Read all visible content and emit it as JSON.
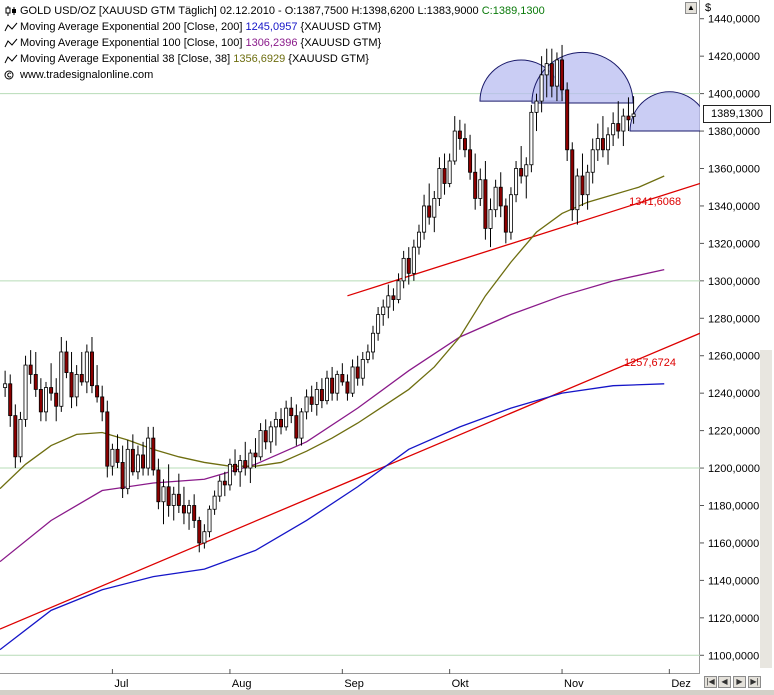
{
  "header": {
    "instrument": "GOLD USD/OZ [XAUUSD GTM",
    "interval": "Täglich]",
    "date": "02.12.2010",
    "ohlc": {
      "open": "O:1387,7500",
      "high": "H:1398,6200",
      "low": "L:1383,9000",
      "close": "C:1389,1300"
    }
  },
  "indicators": [
    {
      "label": "Moving Average Exponential 200 [Close, 200]",
      "value": "1245,0957",
      "suffix": "{XAUUSD GTM}",
      "color": "#1515c8"
    },
    {
      "label": "Moving Average Exponential 100 [Close, 100]",
      "value": "1306,2396",
      "suffix": "{XAUUSD GTM}",
      "color": "#8a1a8a"
    },
    {
      "label": "Moving Average Exponential 38 [Close, 38]",
      "value": "1356,6929",
      "suffix": "{XAUUSD GTM}",
      "color": "#6e6e10"
    }
  ],
  "watermark": "www.tradesignalonline.com",
  "currency_symbol": "$",
  "last_price": "1389,1300",
  "trendline_labels": [
    "1341,6068",
    "1257,6724"
  ],
  "colors": {
    "candle_up": "#ffffff",
    "candle_down": "#8b0000",
    "trendline": "#dd0000",
    "ema200": "#1515c8",
    "ema100": "#8a1a8a",
    "ema38": "#6e6e10",
    "highlight": "#b8bcf0",
    "grid": "#b7dcb7"
  },
  "chart_data": {
    "type": "candlestick",
    "title": "GOLD USD/OZ",
    "ylim": [
      1090,
      1450
    ],
    "y_ticks": [
      "1100,0000",
      "1120,0000",
      "1140,0000",
      "1160,0000",
      "1180,0000",
      "1200,0000",
      "1220,0000",
      "1240,0000",
      "1260,0000",
      "1280,0000",
      "1300,0000",
      "1320,0000",
      "1340,0000",
      "1360,0000",
      "1380,0000",
      "1400,0000",
      "1420,0000",
      "1440,0000"
    ],
    "x_ticks": [
      "Jul",
      "Aug",
      "Sep",
      "Okt",
      "Nov",
      "Dez"
    ],
    "x_tick_positions": [
      22,
      45,
      67,
      88,
      110,
      131
    ],
    "x_range": [
      0,
      137
    ],
    "grid_levels": [
      1100,
      1200,
      1300,
      1400
    ],
    "candles": [
      [
        1243,
        1252,
        1238,
        1245
      ],
      [
        1245,
        1250,
        1222,
        1228
      ],
      [
        1228,
        1234,
        1200,
        1206
      ],
      [
        1206,
        1230,
        1203,
        1226
      ],
      [
        1226,
        1260,
        1222,
        1255
      ],
      [
        1255,
        1263,
        1245,
        1250
      ],
      [
        1250,
        1262,
        1238,
        1242
      ],
      [
        1242,
        1248,
        1225,
        1230
      ],
      [
        1230,
        1246,
        1225,
        1243
      ],
      [
        1243,
        1256,
        1236,
        1240
      ],
      [
        1240,
        1248,
        1225,
        1233
      ],
      [
        1233,
        1270,
        1230,
        1262
      ],
      [
        1262,
        1268,
        1248,
        1251
      ],
      [
        1251,
        1262,
        1232,
        1238
      ],
      [
        1238,
        1255,
        1233,
        1250
      ],
      [
        1250,
        1262,
        1244,
        1246
      ],
      [
        1246,
        1266,
        1240,
        1262
      ],
      [
        1262,
        1270,
        1240,
        1244
      ],
      [
        1244,
        1255,
        1235,
        1238
      ],
      [
        1238,
        1244,
        1225,
        1230
      ],
      [
        1230,
        1236,
        1195,
        1201
      ],
      [
        1201,
        1213,
        1196,
        1210
      ],
      [
        1210,
        1218,
        1200,
        1203
      ],
      [
        1203,
        1212,
        1184,
        1189
      ],
      [
        1189,
        1215,
        1186,
        1210
      ],
      [
        1210,
        1218,
        1196,
        1198
      ],
      [
        1198,
        1212,
        1194,
        1207
      ],
      [
        1207,
        1214,
        1196,
        1200
      ],
      [
        1200,
        1222,
        1196,
        1216
      ],
      [
        1216,
        1222,
        1196,
        1199
      ],
      [
        1199,
        1205,
        1178,
        1182
      ],
      [
        1182,
        1194,
        1170,
        1190
      ],
      [
        1190,
        1202,
        1174,
        1180
      ],
      [
        1180,
        1190,
        1172,
        1186
      ],
      [
        1186,
        1197,
        1176,
        1180
      ],
      [
        1180,
        1190,
        1170,
        1176
      ],
      [
        1176,
        1183,
        1167,
        1180
      ],
      [
        1180,
        1186,
        1168,
        1172
      ],
      [
        1172,
        1174,
        1155,
        1160
      ],
      [
        1160,
        1170,
        1157,
        1166
      ],
      [
        1166,
        1180,
        1163,
        1178
      ],
      [
        1178,
        1188,
        1175,
        1185
      ],
      [
        1185,
        1196,
        1182,
        1193
      ],
      [
        1193,
        1198,
        1185,
        1191
      ],
      [
        1191,
        1205,
        1188,
        1202
      ],
      [
        1202,
        1210,
        1196,
        1198
      ],
      [
        1198,
        1207,
        1190,
        1204
      ],
      [
        1204,
        1214,
        1196,
        1200
      ],
      [
        1200,
        1210,
        1192,
        1208
      ],
      [
        1208,
        1216,
        1200,
        1206
      ],
      [
        1206,
        1224,
        1204,
        1220
      ],
      [
        1220,
        1226,
        1210,
        1214
      ],
      [
        1214,
        1225,
        1208,
        1222
      ],
      [
        1222,
        1230,
        1212,
        1226
      ],
      [
        1226,
        1232,
        1218,
        1222
      ],
      [
        1222,
        1236,
        1220,
        1232
      ],
      [
        1232,
        1238,
        1224,
        1228
      ],
      [
        1228,
        1234,
        1212,
        1216
      ],
      [
        1216,
        1232,
        1212,
        1230
      ],
      [
        1230,
        1242,
        1226,
        1238
      ],
      [
        1238,
        1244,
        1230,
        1234
      ],
      [
        1234,
        1246,
        1228,
        1242
      ],
      [
        1242,
        1248,
        1232,
        1236
      ],
      [
        1236,
        1252,
        1234,
        1248
      ],
      [
        1248,
        1254,
        1236,
        1240
      ],
      [
        1240,
        1252,
        1236,
        1250
      ],
      [
        1250,
        1256,
        1244,
        1246
      ],
      [
        1246,
        1250,
        1236,
        1240
      ],
      [
        1240,
        1258,
        1238,
        1254
      ],
      [
        1254,
        1260,
        1244,
        1248
      ],
      [
        1248,
        1262,
        1244,
        1258
      ],
      [
        1258,
        1266,
        1256,
        1262
      ],
      [
        1262,
        1276,
        1258,
        1272
      ],
      [
        1272,
        1286,
        1268,
        1282
      ],
      [
        1282,
        1290,
        1276,
        1286
      ],
      [
        1286,
        1298,
        1280,
        1292
      ],
      [
        1292,
        1296,
        1284,
        1290
      ],
      [
        1290,
        1304,
        1288,
        1300
      ],
      [
        1300,
        1316,
        1296,
        1312
      ],
      [
        1312,
        1318,
        1298,
        1304
      ],
      [
        1304,
        1322,
        1300,
        1318
      ],
      [
        1318,
        1330,
        1314,
        1326
      ],
      [
        1326,
        1346,
        1322,
        1340
      ],
      [
        1340,
        1352,
        1330,
        1334
      ],
      [
        1334,
        1348,
        1326,
        1344
      ],
      [
        1344,
        1366,
        1340,
        1360
      ],
      [
        1360,
        1368,
        1346,
        1352
      ],
      [
        1352,
        1368,
        1350,
        1364
      ],
      [
        1364,
        1388,
        1362,
        1380
      ],
      [
        1380,
        1386,
        1370,
        1376
      ],
      [
        1376,
        1384,
        1366,
        1370
      ],
      [
        1370,
        1378,
        1354,
        1358
      ],
      [
        1358,
        1368,
        1338,
        1344
      ],
      [
        1344,
        1360,
        1340,
        1354
      ],
      [
        1354,
        1364,
        1322,
        1328
      ],
      [
        1328,
        1344,
        1318,
        1338
      ],
      [
        1338,
        1354,
        1334,
        1350
      ],
      [
        1350,
        1358,
        1334,
        1340
      ],
      [
        1340,
        1344,
        1320,
        1326
      ],
      [
        1326,
        1350,
        1322,
        1346
      ],
      [
        1346,
        1364,
        1342,
        1360
      ],
      [
        1360,
        1372,
        1352,
        1356
      ],
      [
        1356,
        1366,
        1344,
        1362
      ],
      [
        1362,
        1394,
        1358,
        1390
      ],
      [
        1390,
        1400,
        1380,
        1396
      ],
      [
        1396,
        1420,
        1390,
        1410
      ],
      [
        1410,
        1424,
        1398,
        1416
      ],
      [
        1416,
        1424,
        1398,
        1404
      ],
      [
        1404,
        1422,
        1396,
        1418
      ],
      [
        1418,
        1426,
        1396,
        1402
      ],
      [
        1402,
        1406,
        1364,
        1370
      ],
      [
        1370,
        1374,
        1332,
        1338
      ],
      [
        1338,
        1360,
        1330,
        1356
      ],
      [
        1356,
        1368,
        1340,
        1346
      ],
      [
        1346,
        1362,
        1338,
        1358
      ],
      [
        1358,
        1376,
        1352,
        1370
      ],
      [
        1370,
        1384,
        1364,
        1376
      ],
      [
        1376,
        1388,
        1366,
        1370
      ],
      [
        1370,
        1382,
        1362,
        1378
      ],
      [
        1378,
        1390,
        1372,
        1384
      ],
      [
        1384,
        1396,
        1376,
        1380
      ],
      [
        1380,
        1392,
        1372,
        1388
      ],
      [
        1388,
        1398,
        1380,
        1386
      ],
      [
        1387.75,
        1398.62,
        1383.9,
        1389.13
      ]
    ],
    "candle_start_x": 1,
    "trendlines": [
      {
        "points": [
          [
            0,
            1114
          ],
          [
            137,
            1272
          ]
        ]
      },
      {
        "points": [
          [
            68,
            1292
          ],
          [
            137,
            1352
          ]
        ]
      }
    ],
    "series": [
      {
        "name": "Moving Average Exponential 200 [Close, 200]",
        "x": [
          0,
          10,
          20,
          30,
          40,
          50,
          60,
          70,
          80,
          90,
          100,
          110,
          120,
          130
        ],
        "y": [
          1103,
          1124,
          1135,
          1142,
          1146,
          1156,
          1172,
          1190,
          1210,
          1222,
          1232,
          1240,
          1244,
          1245
        ]
      },
      {
        "name": "Moving Average Exponential 100 [Close, 100]",
        "x": [
          0,
          10,
          20,
          30,
          40,
          50,
          60,
          70,
          80,
          90,
          100,
          110,
          120,
          130
        ],
        "y": [
          1150,
          1172,
          1188,
          1192,
          1194,
          1202,
          1214,
          1232,
          1252,
          1270,
          1282,
          1292,
          1300,
          1306
        ]
      },
      {
        "name": "Moving Average Exponential 38 [Close, 38]",
        "x": [
          0,
          5,
          10,
          15,
          20,
          25,
          30,
          35,
          40,
          45,
          50,
          55,
          60,
          65,
          70,
          75,
          80,
          85,
          90,
          95,
          100,
          105,
          110,
          115,
          120,
          125,
          130
        ],
        "y": [
          1189,
          1202,
          1212,
          1218,
          1219,
          1215,
          1210,
          1206,
          1203,
          1201,
          1201,
          1203,
          1209,
          1216,
          1224,
          1233,
          1242,
          1254,
          1270,
          1292,
          1310,
          1326,
          1336,
          1342,
          1346,
          1350,
          1356
        ]
      }
    ],
    "highlights": [
      {
        "center_x": 102,
        "y_bottom": 1396,
        "y_top": 1418
      },
      {
        "center_x": 114,
        "y_bottom": 1395,
        "y_top": 1422
      },
      {
        "center_x": 131,
        "y_bottom": 1380,
        "y_top": 1401
      }
    ]
  }
}
